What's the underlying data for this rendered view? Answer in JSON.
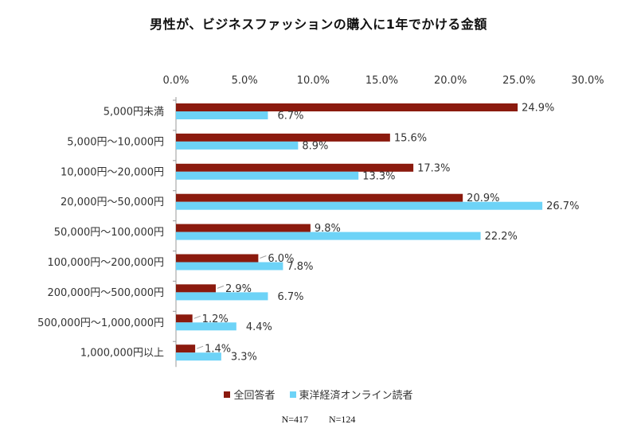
{
  "chart_data": {
    "type": "bar",
    "orientation": "horizontal",
    "title": "男性が、ビジネスファッションの購入に1年でかける金額",
    "categories": [
      "5,000円未満",
      "5,000円～10,000円",
      "10,000円～20,000円",
      "20,000円～50,000円",
      "50,000円～100,000円",
      "100,000円～200,000円",
      "200,000円～500,000円",
      "500,000円～1,000,000円",
      "1,000,000円以上"
    ],
    "series": [
      {
        "name": "全回答者",
        "color": "#8B1A0E",
        "values": [
          24.9,
          15.6,
          17.3,
          20.9,
          9.8,
          6.0,
          2.9,
          1.2,
          1.4
        ],
        "labels": [
          "24.9%",
          "15.6%",
          "17.3%",
          "20.9%",
          "9.8%",
          "6.0%",
          "2.9%",
          "1.2%",
          "1.4%"
        ]
      },
      {
        "name": "東洋経済オンライン読者",
        "color": "#6DD3F7",
        "values": [
          6.7,
          8.9,
          13.3,
          26.7,
          22.2,
          7.8,
          6.7,
          4.4,
          3.3
        ],
        "labels": [
          "6.7%",
          "8.9%",
          "13.3%",
          "26.7%",
          "22.2%",
          "7.8%",
          "6.7%",
          "4.4%",
          "3.3%"
        ]
      }
    ],
    "x_ticks": [
      0,
      5,
      10,
      15,
      20,
      25,
      30
    ],
    "x_tick_labels": [
      "0.0%",
      "5.0%",
      "10.0%",
      "15.0%",
      "20.0%",
      "25.0%",
      "30.0%"
    ],
    "xlim": [
      0,
      30
    ],
    "x_axis_position": "top",
    "grid": false,
    "legend_position": "bottom",
    "sample_sizes": [
      "N=417",
      "N=124"
    ]
  }
}
